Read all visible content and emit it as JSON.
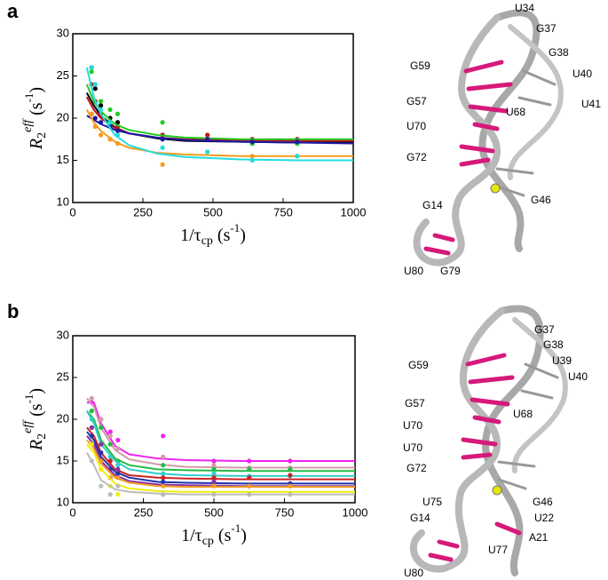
{
  "panel_labels": [
    "a",
    "b"
  ],
  "chart_data": [
    {
      "type": "line",
      "ylabel": [
        "R",
        "2",
        "eff",
        " (s",
        "-1",
        ")"
      ],
      "xlabel": [
        "1/τ",
        "cp",
        " (s",
        "-1",
        ")"
      ],
      "xlim": [
        0,
        1000
      ],
      "ylim": [
        10,
        30
      ],
      "xticks": [
        0,
        250,
        500,
        750,
        1000
      ],
      "yticks": [
        10,
        15,
        20,
        25,
        30
      ],
      "x": [
        67,
        80,
        100,
        133,
        160,
        320,
        480,
        640,
        800
      ],
      "fit_x": [
        50,
        75,
        100,
        150,
        200,
        300,
        400,
        600,
        800,
        1000
      ],
      "series": [
        {
          "color": "#000000",
          "values": [
            26,
            23.5,
            21.5,
            20,
            19.5,
            18,
            17.5,
            17,
            17
          ],
          "fit": [
            23,
            21.5,
            20.3,
            18.9,
            18.2,
            17.6,
            17.3,
            17.2,
            17.1,
            17.1
          ]
        },
        {
          "color": "#c0141e",
          "values": [
            24,
            22,
            20.5,
            19.5,
            19,
            18,
            18,
            17.5,
            17.5
          ],
          "fit": [
            22.5,
            21,
            20,
            18.8,
            18.2,
            17.7,
            17.5,
            17.4,
            17.3,
            17.3
          ]
        },
        {
          "color": "#22cc22",
          "values": [
            25.5,
            24,
            22,
            21,
            20.5,
            19.5,
            17.5,
            17,
            17
          ],
          "fit": [
            24,
            22,
            20.8,
            19.3,
            18.6,
            18,
            17.7,
            17.5,
            17.5,
            17.5
          ]
        },
        {
          "color": "#1a1aa8",
          "values": [
            20.5,
            20,
            19.5,
            19,
            18.5,
            17.5,
            17.5,
            17.2,
            17.2
          ],
          "fit": [
            20.3,
            19.8,
            19.3,
            18.6,
            18.2,
            17.7,
            17.4,
            17.2,
            17.1,
            17
          ]
        },
        {
          "color": "#f39c1e",
          "values": [
            20.5,
            19,
            18,
            17.5,
            17,
            14.5,
            16,
            15.5,
            15.5
          ],
          "fit": [
            21,
            19.5,
            18.5,
            17.2,
            16.5,
            15.9,
            15.7,
            15.5,
            15.5,
            15.5
          ]
        },
        {
          "color": "#22dddd",
          "values": [
            26,
            24,
            21,
            19.5,
            18,
            16.5,
            16,
            15,
            15.5
          ],
          "fit": [
            26,
            22.5,
            20.5,
            18,
            16.8,
            15.8,
            15.4,
            15.1,
            15,
            15
          ]
        }
      ]
    },
    {
      "type": "line",
      "ylabel": [
        "R",
        "2",
        "eff",
        " (s",
        "-1",
        ")"
      ],
      "xlabel": [
        "1/τ",
        "cp",
        " (s",
        "-1",
        ")"
      ],
      "xlim": [
        0,
        1000
      ],
      "ylim": [
        10,
        30
      ],
      "xticks": [
        0,
        250,
        500,
        750,
        1000
      ],
      "yticks": [
        10,
        15,
        20,
        25,
        30
      ],
      "x": [
        67,
        100,
        133,
        160,
        320,
        500,
        625,
        770
      ],
      "fit_x": [
        50,
        75,
        100,
        150,
        200,
        300,
        400,
        600,
        800,
        1000
      ],
      "series": [
        {
          "color": "#ee22ee",
          "values": [
            22,
            20,
            18.5,
            17.5,
            18,
            15,
            15,
            15
          ],
          "fit": [
            22,
            22,
            19.5,
            16.8,
            15.8,
            15.3,
            15.1,
            15,
            15,
            15
          ]
        },
        {
          "color": "#d49aa8",
          "values": [
            22.5,
            20,
            18,
            16.5,
            15.5,
            14.5,
            14.2,
            14.2
          ],
          "fit": [
            22.5,
            21.5,
            19,
            16.3,
            15.2,
            14.6,
            14.3,
            14.2,
            14.2,
            14.2
          ]
        },
        {
          "color": "#22bb44",
          "values": [
            21,
            19,
            17,
            15,
            14.5,
            14,
            14,
            14
          ],
          "fit": [
            21,
            20,
            17.5,
            15.3,
            14.5,
            14,
            13.9,
            13.8,
            13.8,
            13.8
          ]
        },
        {
          "color": "#33cccc",
          "values": [
            20,
            17,
            15.5,
            14.5,
            13.5,
            13.5,
            13.2,
            13.2
          ],
          "fit": [
            21,
            19.5,
            17,
            15,
            14,
            13.5,
            13.3,
            13.2,
            13.2,
            13.2
          ]
        },
        {
          "color": "#cc2222",
          "values": [
            19,
            17,
            15,
            14,
            13,
            13,
            13,
            13.3
          ],
          "fit": [
            19,
            18,
            16,
            14,
            13.3,
            13,
            12.9,
            12.8,
            12.8,
            12.8
          ]
        },
        {
          "color": "#2233aa",
          "values": [
            18,
            16,
            14,
            13.5,
            12.5,
            12.5,
            12,
            12.3
          ],
          "fit": [
            18.5,
            17.5,
            15.5,
            13.7,
            13,
            12.5,
            12.4,
            12.3,
            12.3,
            12.3
          ]
        },
        {
          "color": "#8833aa",
          "values": [
            19,
            17,
            13,
            14,
            11,
            12.5,
            12,
            12
          ],
          "fit": [
            18,
            17,
            15,
            13.3,
            12.6,
            12.2,
            12.1,
            12,
            12,
            12
          ]
        },
        {
          "color": "#f39c1e",
          "values": [
            17,
            15,
            13,
            13,
            12,
            12,
            12,
            12
          ],
          "fit": [
            17.5,
            16.5,
            14.7,
            13,
            12.4,
            12,
            11.9,
            11.9,
            11.9,
            11.9
          ]
        },
        {
          "color": "#eeee11",
          "values": [
            17,
            14,
            12,
            11,
            11,
            11,
            11,
            11
          ],
          "fit": [
            17,
            16,
            14,
            12.3,
            11.7,
            11.4,
            11.3,
            11.3,
            11.3,
            11.3
          ]
        },
        {
          "color": "#bbbbbb",
          "values": [
            15,
            12,
            11,
            12,
            11,
            11,
            11,
            11
          ],
          "fit": [
            16,
            14.5,
            12.7,
            11.6,
            11.3,
            11.1,
            11,
            11,
            11,
            11
          ]
        }
      ]
    }
  ],
  "structure_labels": [
    [
      "U34",
      "G37",
      "G38",
      "U40",
      "U41",
      "G59",
      "G57",
      "U68",
      "U70",
      "G72",
      "G46",
      "G14",
      "U80",
      "G79"
    ],
    [
      "G37",
      "G38",
      "U39",
      "U40",
      "G59",
      "G57",
      "U68",
      "U70",
      "U70",
      "G72",
      "U75",
      "G46",
      "G14",
      "U22",
      "A21",
      "U77",
      "U80"
    ]
  ]
}
